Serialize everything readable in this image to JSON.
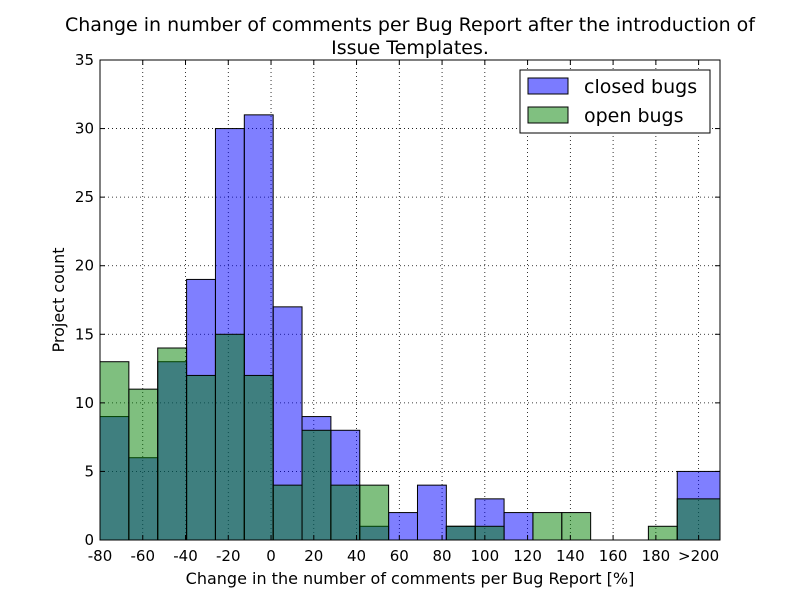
{
  "chart_data": {
    "type": "bar",
    "title_lines": [
      "Change in number of comments per Bug Report after the introduction of",
      "Issue Templates."
    ],
    "xlabel": "Change in the number of comments per Bug Report [%]",
    "ylabel": "Project count",
    "xlim": [
      -80,
      210
    ],
    "ylim": [
      0,
      35
    ],
    "x_tick_values": [
      -80,
      -60,
      -40,
      -20,
      0,
      20,
      40,
      60,
      80,
      100,
      120,
      140,
      160,
      180,
      200
    ],
    "x_tick_labels": [
      "-80",
      "-60",
      "-40",
      "-20",
      "0",
      "20",
      "40",
      "60",
      "80",
      "100",
      "120",
      "140",
      "160",
      "180",
      ">200"
    ],
    "y_ticks": [
      0,
      5,
      10,
      15,
      20,
      25,
      30,
      35
    ],
    "bin_edges": [
      -80,
      -66.5,
      -53,
      -39.5,
      -26,
      -12.5,
      1,
      14.5,
      28,
      41.5,
      55,
      68.5,
      82,
      95.5,
      109,
      122.5,
      136,
      149.5,
      163,
      176.5,
      190,
      210
    ],
    "grid": true,
    "legend_position": "top-right",
    "series": [
      {
        "name": "closed bugs",
        "color": "#7b7bff",
        "values": [
          9,
          6,
          13,
          19,
          30,
          31,
          17,
          9,
          8,
          1,
          2,
          4,
          1,
          3,
          2,
          0,
          0,
          0,
          0,
          0,
          5
        ]
      },
      {
        "name": "open bugs",
        "color": "#80c080",
        "values": [
          13,
          11,
          14,
          12,
          15,
          12,
          4,
          8,
          4,
          4,
          0,
          0,
          1,
          1,
          0,
          2,
          2,
          0,
          0,
          1,
          3
        ]
      }
    ],
    "overlap_color": "#408080"
  }
}
